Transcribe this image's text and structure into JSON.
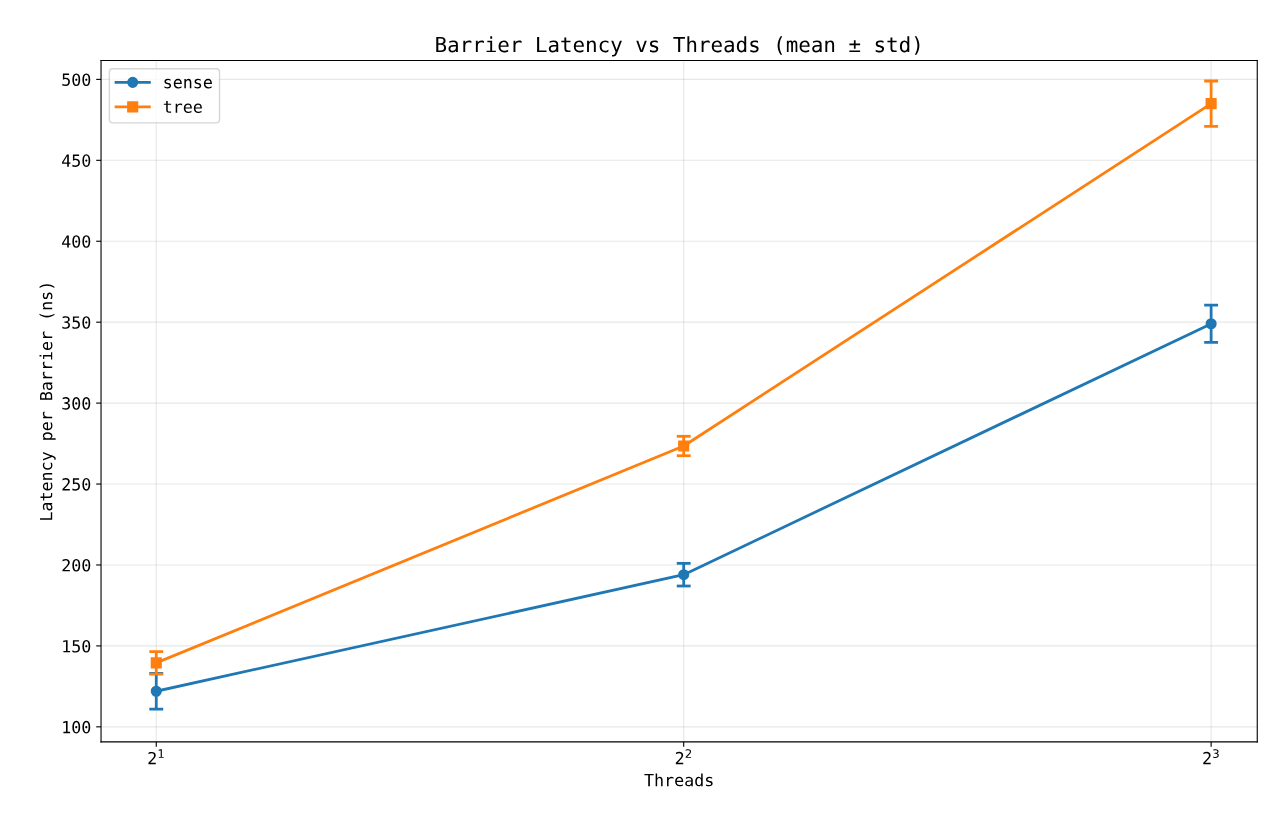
{
  "chart_data": {
    "type": "line",
    "title": "Barrier Latency vs Threads (mean ± std)",
    "xlabel": "Threads",
    "ylabel": "Latency per Barrier (ns)",
    "x": [
      2,
      4,
      8
    ],
    "log": "x",
    "series": [
      {
        "name": "sense",
        "color": "#1f77b4",
        "marker": "circle",
        "values": [
          122,
          194,
          349
        ],
        "errors": [
          11,
          7,
          11.5
        ]
      },
      {
        "name": "tree",
        "color": "#ff7f0e",
        "marker": "square",
        "values": [
          139.5,
          273.5,
          485
        ],
        "errors": [
          7,
          6,
          14
        ]
      }
    ],
    "xlim": [
      1.86,
      8.5
    ],
    "xticks": [
      {
        "value": 2,
        "label": "2$^{1}$"
      },
      {
        "value": 4,
        "label": "2$^{2}$"
      },
      {
        "value": 8,
        "label": "2$^{3}$"
      }
    ],
    "ylim": [
      90.7,
      511.7
    ],
    "yticks": [
      100,
      150,
      200,
      250,
      300,
      350,
      400,
      450,
      500
    ],
    "grid": true,
    "legend": "top left",
    "line_style": "solid"
  }
}
